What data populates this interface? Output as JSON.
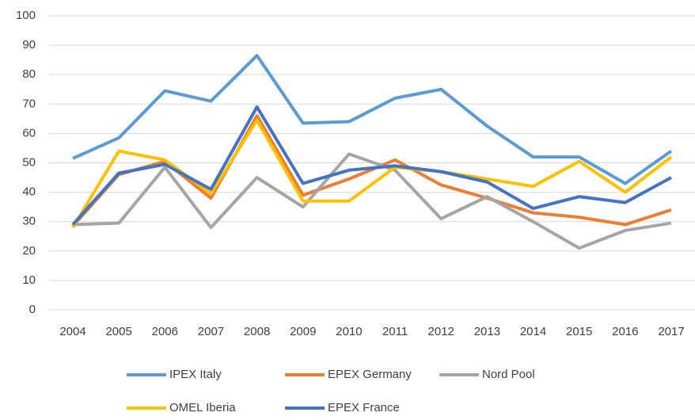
{
  "chart_data": {
    "type": "line",
    "categories": [
      "2004",
      "2005",
      "2006",
      "2007",
      "2008",
      "2009",
      "2010",
      "2011",
      "2012",
      "2013",
      "2014",
      "2015",
      "2016",
      "2017"
    ],
    "series": [
      {
        "name": "IPEX Italy",
        "color": "#5b9bd5",
        "values": [
          51.5,
          58.5,
          74.5,
          71,
          86.5,
          63.5,
          64,
          72,
          75,
          62.5,
          52,
          52,
          43,
          54
        ]
      },
      {
        "name": "EPEX Germany",
        "color": "#ed7d31",
        "values": [
          28.5,
          46,
          50.5,
          38,
          66,
          39,
          44.5,
          51,
          42.5,
          38,
          33,
          31.5,
          29,
          34
        ]
      },
      {
        "name": "Nord Pool",
        "color": "#a5a5a5",
        "values": [
          29,
          29.5,
          48.5,
          28,
          45,
          35,
          53,
          47.5,
          31,
          38.5,
          30,
          21,
          27,
          29.5
        ]
      },
      {
        "name": "OMEL Iberia",
        "color": "#ffc000",
        "values": [
          28,
          54,
          51,
          39.5,
          64.5,
          37,
          37,
          48.5,
          47,
          44.5,
          42,
          50.5,
          40,
          52
        ]
      },
      {
        "name": "EPEX France",
        "color": "#4472c4",
        "values": [
          29,
          46.5,
          49.5,
          41,
          69,
          43,
          47.5,
          49,
          47,
          43.5,
          34.5,
          38.5,
          36.5,
          45
        ]
      }
    ],
    "ylim": [
      0,
      100
    ],
    "yticks": [
      0,
      10,
      20,
      30,
      40,
      50,
      60,
      70,
      80,
      90,
      100
    ],
    "grid": true,
    "legend": "bottom"
  }
}
